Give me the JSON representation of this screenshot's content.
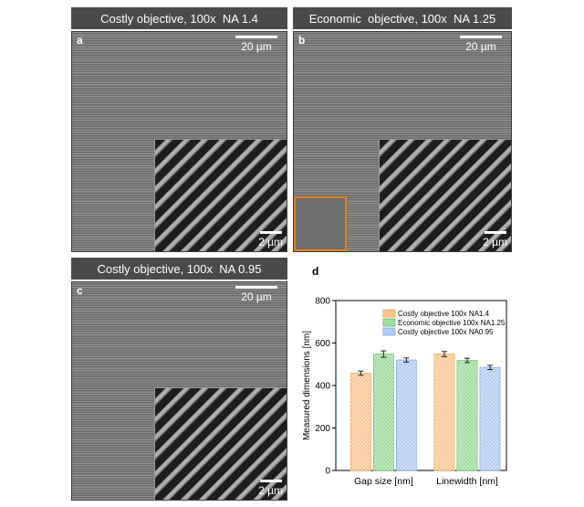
{
  "panels": [
    {
      "title": "Costly objective, 100x  NA 1.4",
      "letter": "a",
      "scale_main": "20 µm",
      "scale_inset": "2 µm"
    },
    {
      "title": "Economic  objective, 100x  NA 1.25",
      "letter": "b",
      "scale_main": "20 µm",
      "scale_inset": "2 µm"
    },
    {
      "title": "Costly objective, 100x  NA 0.95",
      "letter": "c",
      "scale_main": "20 µm",
      "scale_inset": "2 µm"
    }
  ],
  "colors": {
    "orange": "#f5a04a",
    "green": "#5cc45c",
    "blue": "#7ea6e8",
    "highlight_box": "#e0801a"
  },
  "chart_data": {
    "type": "bar",
    "panel_letter": "d",
    "ylabel": "Measured dimensions [nm]",
    "ylim": [
      0,
      800
    ],
    "yticks": [
      0,
      200,
      400,
      600,
      800
    ],
    "categories": [
      "Gap size [nm]",
      "Linewidth [nm]"
    ],
    "series": [
      {
        "name": "Costly objective 100x NA1.4",
        "color": "#f5a04a",
        "values": [
          458,
          548
        ],
        "errors": [
          10,
          12
        ]
      },
      {
        "name": "Economic objective 100x NA1.25",
        "color": "#5cc45c",
        "values": [
          548,
          518
        ],
        "errors": [
          15,
          10
        ]
      },
      {
        "name": "Costly objective 100x NA0.95",
        "color": "#7ea6e8",
        "values": [
          520,
          485
        ],
        "errors": [
          10,
          10
        ]
      }
    ],
    "legend_position": "top-right",
    "grid": false
  }
}
